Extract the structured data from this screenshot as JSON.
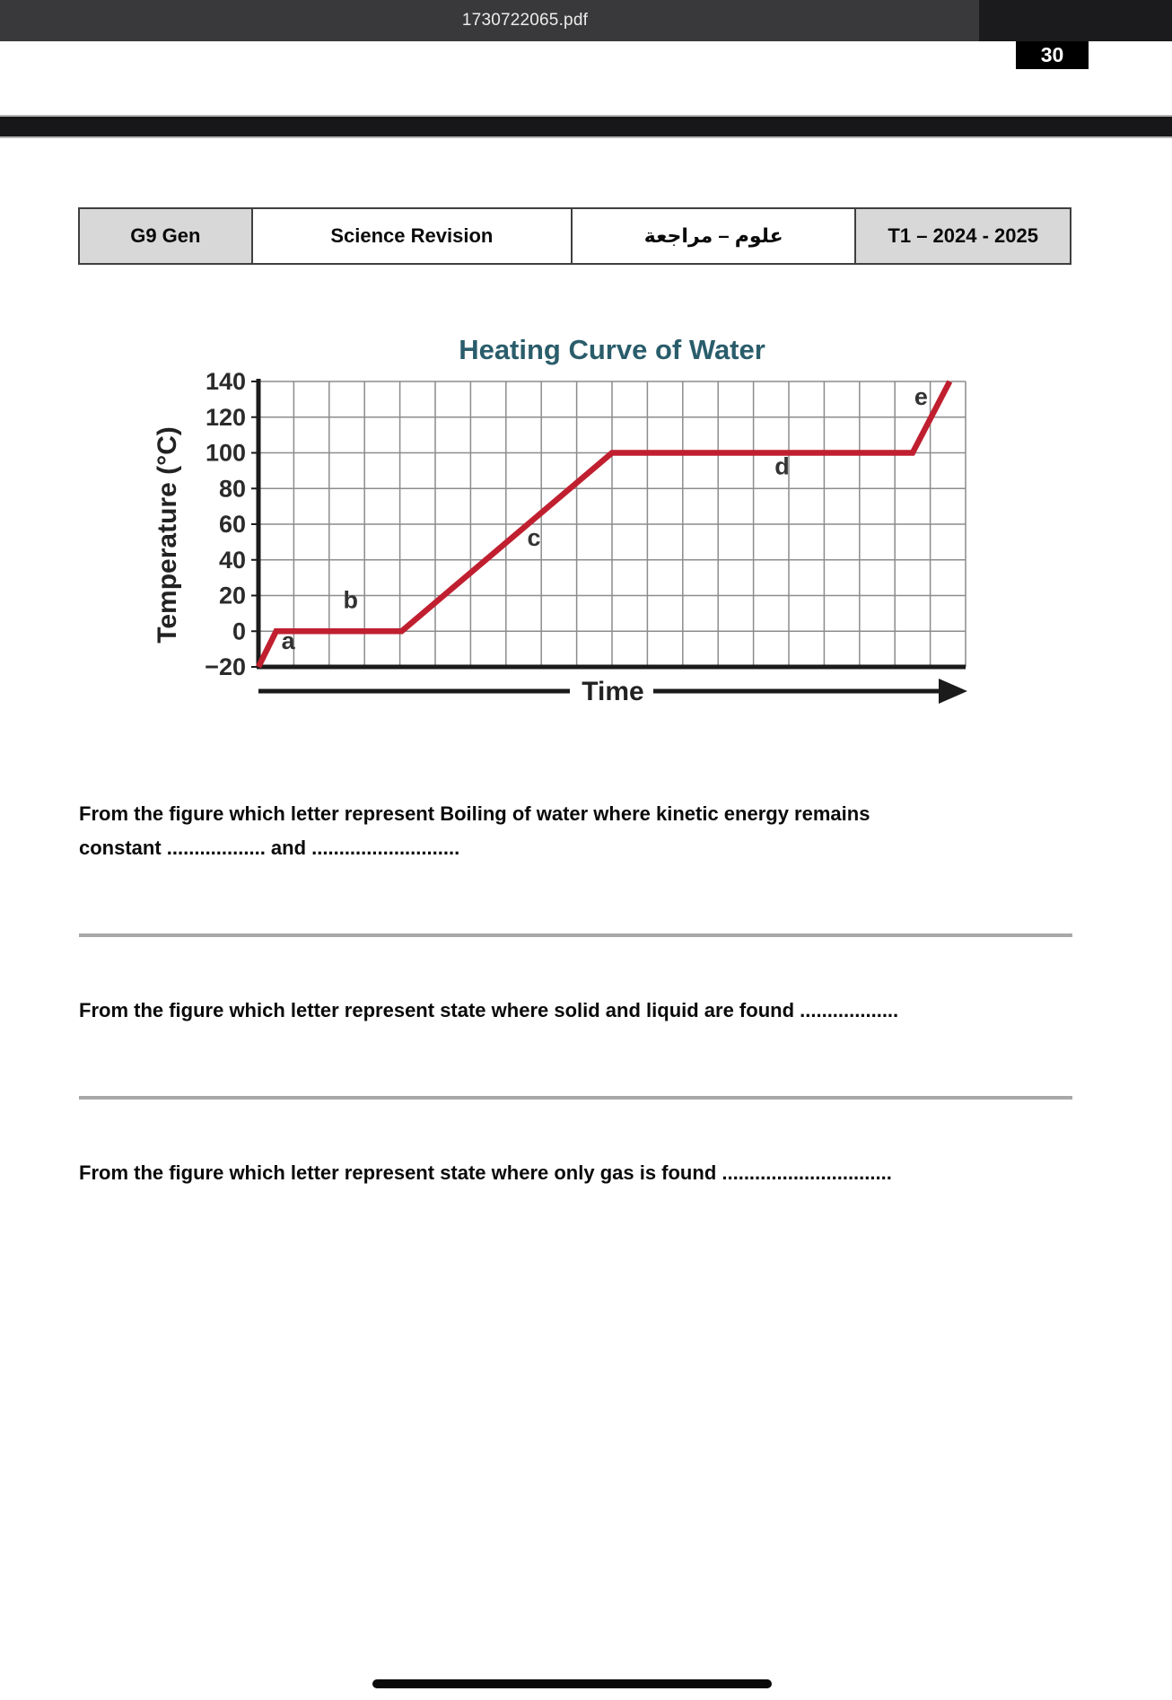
{
  "viewer": {
    "filename": "1730722065.pdf",
    "page_badge": "30"
  },
  "header_table": {
    "cells": [
      {
        "label": "G9 Gen"
      },
      {
        "label": "Science Revision"
      },
      {
        "label": "علوم – مراجعة"
      },
      {
        "label": "T1 – 2024 - 2025"
      }
    ]
  },
  "questions": [
    {
      "lines": [
        "From the figure which letter represent Boiling of water where kinetic energy remains",
        "constant .................. and ..........................."
      ]
    },
    {
      "lines": [
        "From the figure which letter represent state where solid and liquid are found .................."
      ]
    },
    {
      "lines": [
        "From the figure which letter represent state where only gas is found ..............................."
      ]
    }
  ],
  "chart_data": {
    "type": "line",
    "title": "Heating Curve of Water",
    "xlabel": "Time",
    "ylabel": "Temperature (°C)",
    "ylim": [
      -20,
      140
    ],
    "yticks": [
      140,
      120,
      100,
      80,
      60,
      40,
      20,
      0,
      -20
    ],
    "xlim": [
      0,
      20
    ],
    "x_gridlines": 20,
    "grid": true,
    "x_axis_unlabeled": true,
    "series": [
      {
        "name": "heating-curve",
        "points": [
          [
            0,
            -20
          ],
          [
            0.5,
            0
          ],
          [
            4.05,
            0
          ],
          [
            10,
            100
          ],
          [
            18.5,
            100
          ],
          [
            19.55,
            140
          ]
        ]
      }
    ],
    "segment_labels": [
      {
        "label": "a",
        "x": 0.65,
        "y": -10
      },
      {
        "label": "b",
        "x": 2.4,
        "y": 13
      },
      {
        "label": "c",
        "x": 7.6,
        "y": 48
      },
      {
        "label": "d",
        "x": 14.6,
        "y": 88
      },
      {
        "label": "e",
        "x": 18.55,
        "y": 127
      }
    ],
    "colors": {
      "line": "#c01f2f",
      "grid": "#8c8c8c",
      "axis": "#1b1b1b",
      "title": "#2a5d6b"
    }
  }
}
